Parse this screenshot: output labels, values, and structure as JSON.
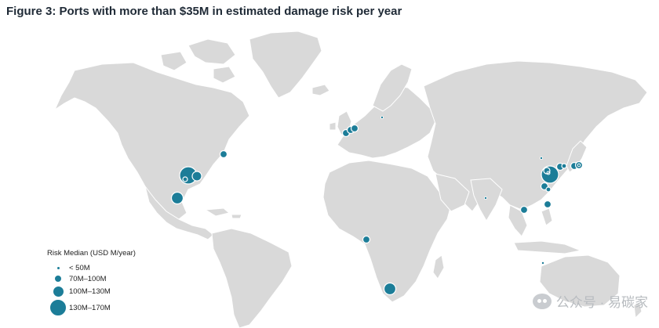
{
  "figure": {
    "title": "Figure 3: Ports with more than $35M in estimated damage risk per year"
  },
  "legend": {
    "title": "Risk Median (USD M/year)",
    "items": [
      {
        "label": "< 50M",
        "size_class": "lt50"
      },
      {
        "label": "70M–100M",
        "size_class": "70to100"
      },
      {
        "label": "100M–130M",
        "size_class": "100to130"
      },
      {
        "label": "130M–170M",
        "size_class": "130to170"
      }
    ]
  },
  "colors": {
    "land": "#d9d9d9",
    "ocean": "#ffffff",
    "port_marker": "#1c7d98"
  },
  "watermark": {
    "text": "公众号 · 易碳家",
    "icon": "wechat-icon"
  }
}
